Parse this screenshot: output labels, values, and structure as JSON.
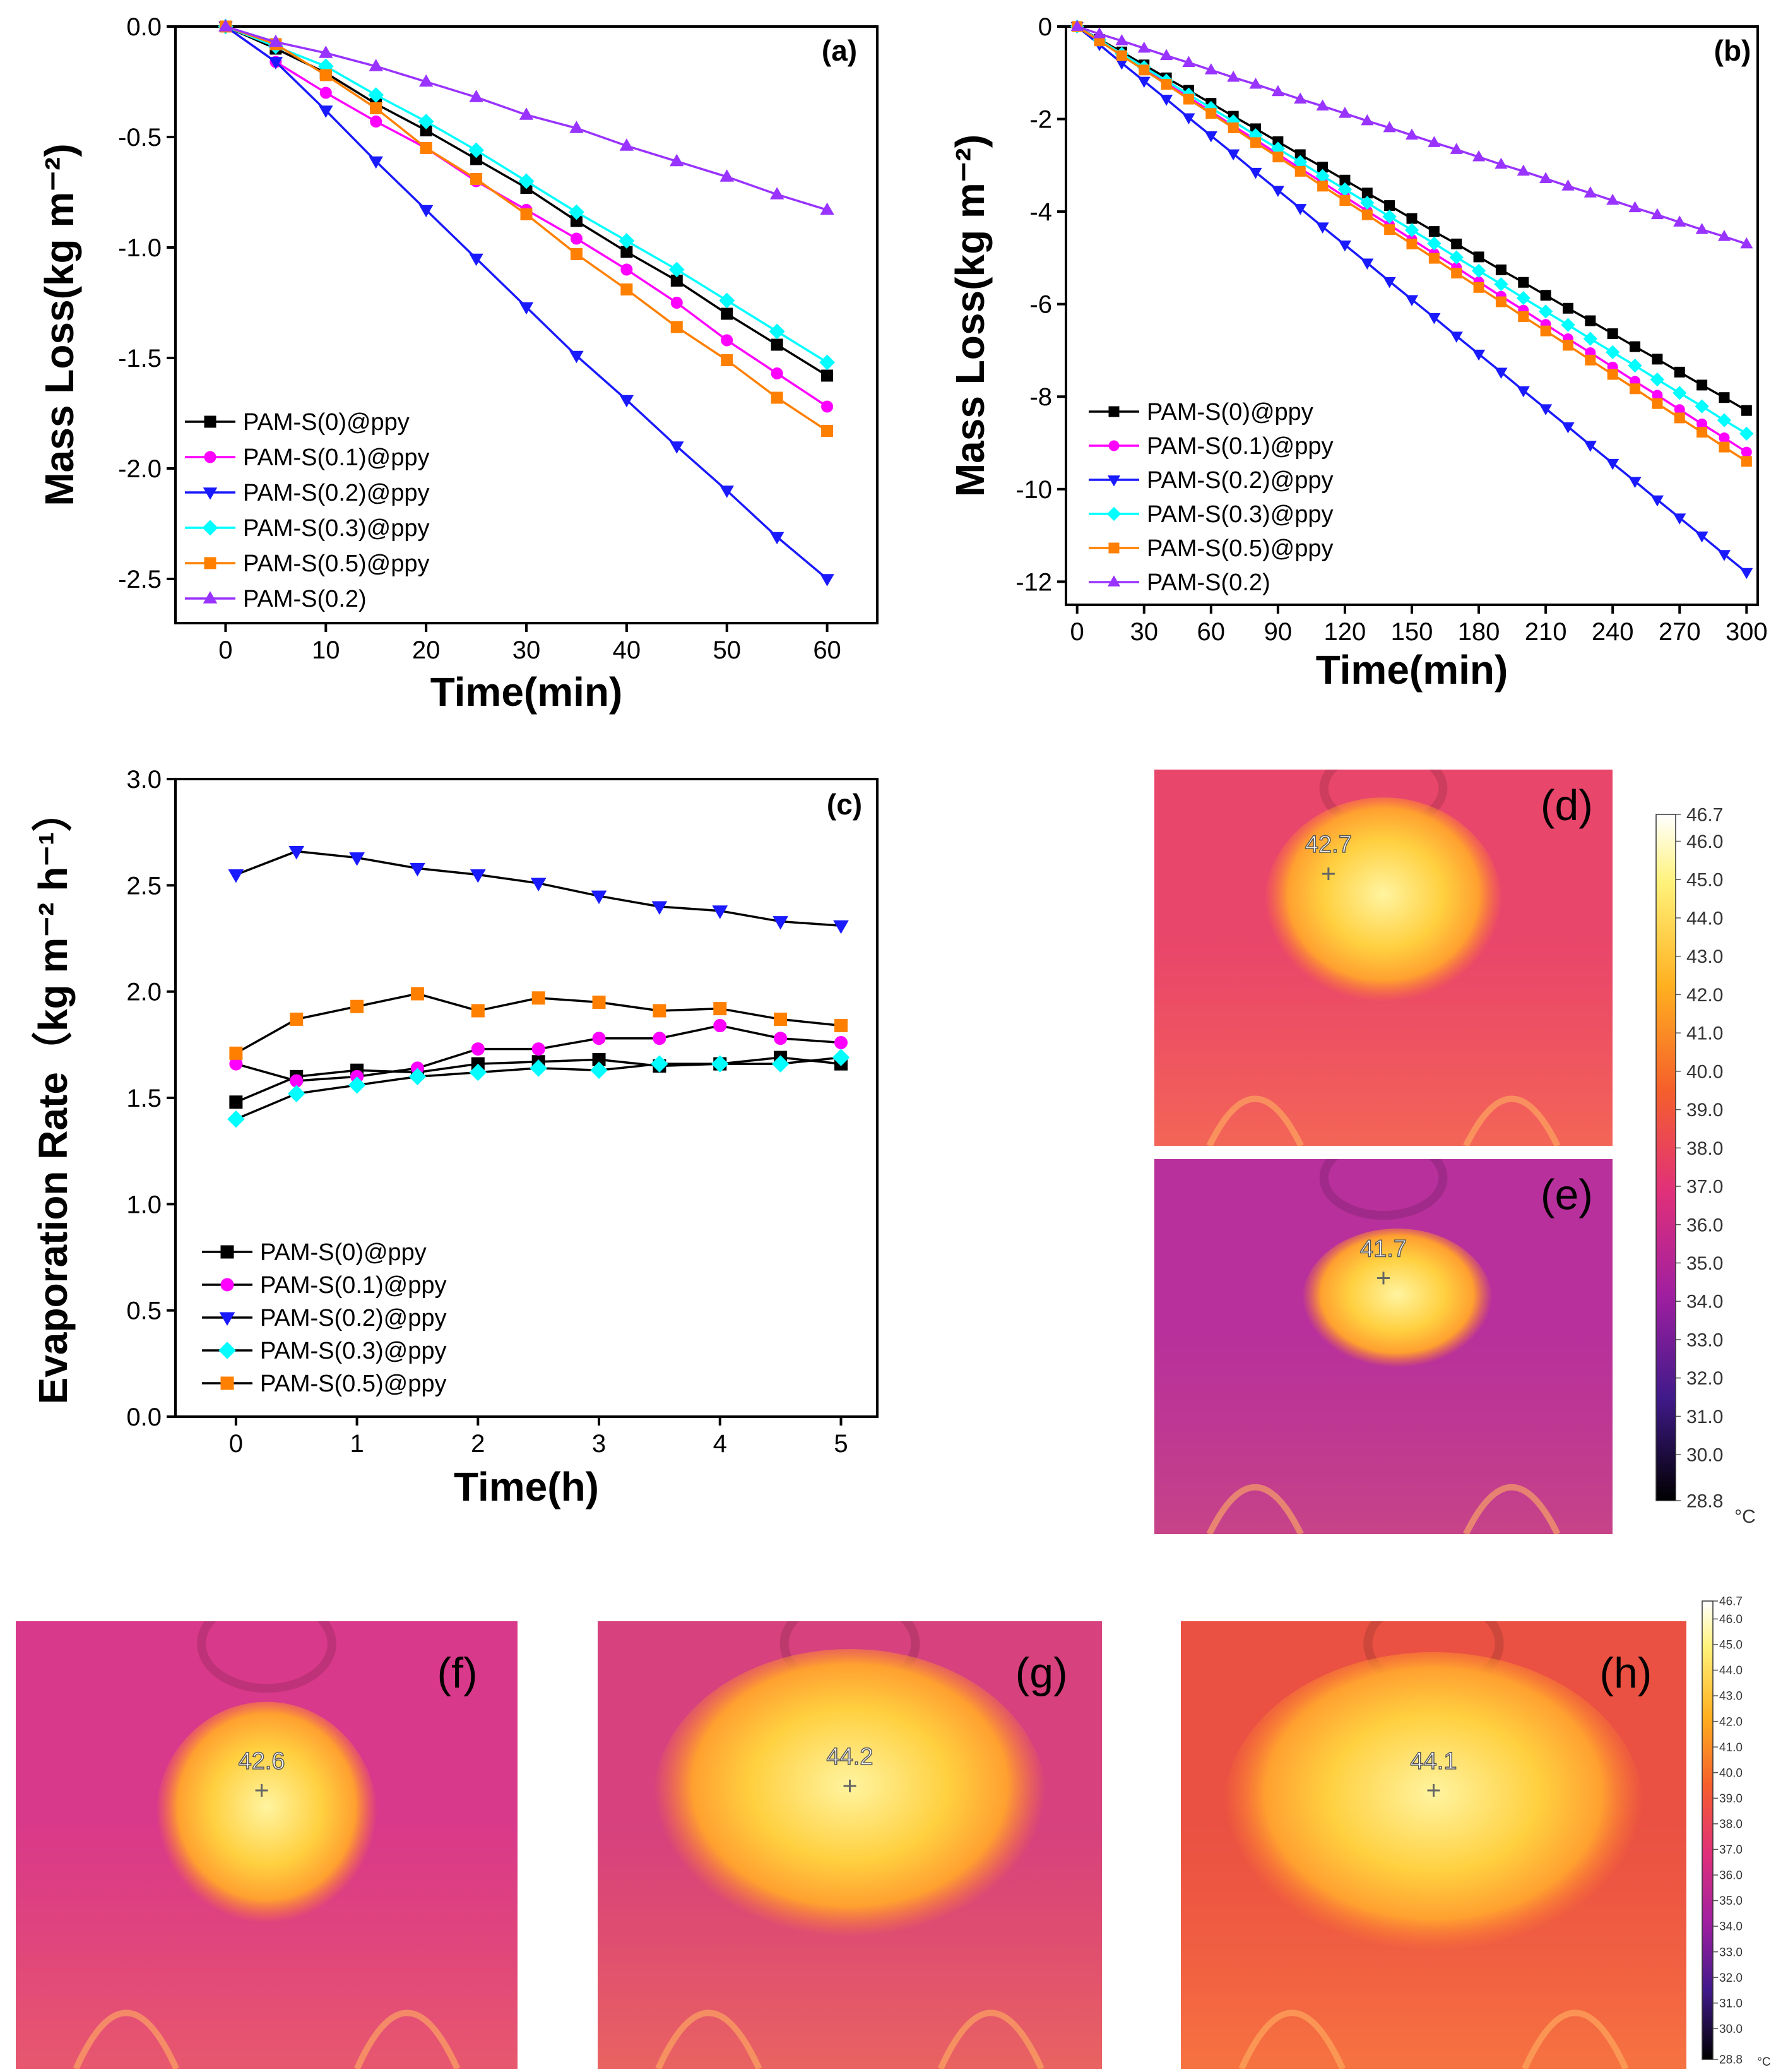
{
  "chart_data": [
    {
      "type": "line",
      "label": "(a)",
      "xlabel": "Time(min)",
      "ylabel": "Mass Loss(kg m⁻²)",
      "x": [
        0,
        5,
        10,
        15,
        20,
        25,
        30,
        35,
        40,
        45,
        50,
        55,
        60
      ],
      "xlim": [
        -5,
        65
      ],
      "xticks": [
        0,
        10,
        20,
        30,
        40,
        50,
        60
      ],
      "ylim": [
        -2.7,
        0.0
      ],
      "yticks": [
        {
          "value": 0,
          "label": "0.0"
        },
        -0.5,
        {
          "value": -1,
          "label": "-1.0"
        },
        -1.5,
        {
          "value": -2,
          "label": "-2.0"
        },
        -2.5
      ],
      "series": [
        {
          "name": "PAM-S(0)@ppy",
          "color": "#000000",
          "marker": "square",
          "values": [
            0,
            -0.1,
            -0.21,
            -0.35,
            -0.47,
            -0.6,
            -0.73,
            -0.88,
            -1.02,
            -1.15,
            -1.3,
            -1.44,
            -1.58
          ]
        },
        {
          "name": "PAM-S(0.1)@ppy",
          "color": "#ff00ff",
          "marker": "circle",
          "values": [
            0,
            -0.16,
            -0.3,
            -0.43,
            -0.55,
            -0.7,
            -0.83,
            -0.96,
            -1.1,
            -1.25,
            -1.42,
            -1.57,
            -1.72
          ]
        },
        {
          "name": "PAM-S(0.2)@ppy",
          "color": "#1a1aff",
          "marker": "triangle-down",
          "values": [
            0,
            -0.16,
            -0.38,
            -0.61,
            -0.83,
            -1.05,
            -1.27,
            -1.49,
            -1.69,
            -1.9,
            -2.1,
            -2.31,
            -2.5
          ]
        },
        {
          "name": "PAM-S(0.3)@ppy",
          "color": "#00ffff",
          "marker": "diamond",
          "values": [
            0,
            -0.09,
            -0.18,
            -0.31,
            -0.43,
            -0.56,
            -0.7,
            -0.84,
            -0.97,
            -1.1,
            -1.24,
            -1.38,
            -1.52
          ]
        },
        {
          "name": "PAM-S(0.5)@ppy",
          "color": "#ff8000",
          "marker": "square",
          "values": [
            0,
            -0.08,
            -0.22,
            -0.37,
            -0.55,
            -0.69,
            -0.85,
            -1.03,
            -1.19,
            -1.36,
            -1.51,
            -1.68,
            -1.83
          ]
        },
        {
          "name": "PAM-S(0.2)",
          "color": "#9933ff",
          "marker": "triangle-up",
          "values": [
            0,
            -0.07,
            -0.12,
            -0.18,
            -0.25,
            -0.32,
            -0.4,
            -0.46,
            -0.54,
            -0.61,
            -0.68,
            -0.76,
            -0.83
          ]
        }
      ]
    },
    {
      "type": "line",
      "label": "(b)",
      "xlabel": "Time(min)",
      "ylabel": "Mass Loss(kg m⁻²)",
      "x": [
        0,
        10,
        20,
        30,
        40,
        50,
        60,
        70,
        80,
        90,
        100,
        110,
        120,
        130,
        140,
        150,
        160,
        170,
        180,
        190,
        200,
        210,
        220,
        230,
        240,
        250,
        260,
        270,
        280,
        290,
        300
      ],
      "xlim": [
        -5,
        305
      ],
      "xticks": [
        0,
        30,
        60,
        90,
        120,
        150,
        180,
        210,
        240,
        270,
        300
      ],
      "ylim": [
        -12.5,
        0
      ],
      "yticks": [
        0,
        -2,
        -4,
        -6,
        -8,
        -10,
        -12
      ],
      "series": [
        {
          "name": "PAM-S(0)@ppy",
          "color": "#000000",
          "marker": "square",
          "values": [
            0,
            -0.28,
            -0.55,
            -0.83,
            -1.11,
            -1.38,
            -1.66,
            -1.94,
            -2.21,
            -2.49,
            -2.77,
            -3.04,
            -3.32,
            -3.6,
            -3.87,
            -4.15,
            -4.43,
            -4.7,
            -4.98,
            -5.26,
            -5.53,
            -5.81,
            -6.09,
            -6.36,
            -6.64,
            -6.92,
            -7.19,
            -7.47,
            -7.75,
            -8.02,
            -8.3
          ]
        },
        {
          "name": "PAM-S(0.1)@ppy",
          "color": "#ff00ff",
          "marker": "circle",
          "values": [
            0,
            -0.31,
            -0.61,
            -0.92,
            -1.23,
            -1.53,
            -1.84,
            -2.15,
            -2.45,
            -2.76,
            -3.07,
            -3.37,
            -3.68,
            -3.99,
            -4.29,
            -4.6,
            -4.91,
            -5.21,
            -5.52,
            -5.83,
            -6.13,
            -6.44,
            -6.75,
            -7.05,
            -7.36,
            -7.67,
            -7.97,
            -8.28,
            -8.59,
            -8.89,
            -9.2
          ]
        },
        {
          "name": "PAM-S(0.2)@ppy",
          "color": "#1a1aff",
          "marker": "triangle-down",
          "values": [
            0,
            -0.39,
            -0.79,
            -1.18,
            -1.57,
            -1.97,
            -2.36,
            -2.75,
            -3.15,
            -3.54,
            -3.93,
            -4.33,
            -4.72,
            -5.11,
            -5.51,
            -5.9,
            -6.29,
            -6.69,
            -7.08,
            -7.47,
            -7.87,
            -8.26,
            -8.65,
            -9.05,
            -9.44,
            -9.83,
            -10.23,
            -10.62,
            -11.01,
            -11.41,
            -11.8
          ]
        },
        {
          "name": "PAM-S(0.3)@ppy",
          "color": "#00ffff",
          "marker": "diamond",
          "values": [
            0,
            -0.29,
            -0.59,
            -0.88,
            -1.17,
            -1.47,
            -1.76,
            -2.05,
            -2.35,
            -2.64,
            -2.93,
            -3.23,
            -3.52,
            -3.81,
            -4.11,
            -4.4,
            -4.69,
            -4.99,
            -5.28,
            -5.57,
            -5.87,
            -6.16,
            -6.45,
            -6.75,
            -7.04,
            -7.33,
            -7.63,
            -7.92,
            -8.21,
            -8.51,
            -8.8
          ]
        },
        {
          "name": "PAM-S(0.5)@ppy",
          "color": "#ff8000",
          "marker": "square",
          "values": [
            0,
            -0.31,
            -0.63,
            -0.94,
            -1.25,
            -1.57,
            -1.88,
            -2.19,
            -2.51,
            -2.82,
            -3.13,
            -3.45,
            -3.76,
            -4.07,
            -4.39,
            -4.7,
            -5.01,
            -5.33,
            -5.64,
            -5.95,
            -6.27,
            -6.58,
            -6.89,
            -7.21,
            -7.52,
            -7.83,
            -8.15,
            -8.46,
            -8.77,
            -9.09,
            -9.4
          ]
        },
        {
          "name": "PAM-S(0.2)",
          "color": "#9933ff",
          "marker": "triangle-up",
          "values": [
            0,
            -0.16,
            -0.31,
            -0.47,
            -0.63,
            -0.78,
            -0.94,
            -1.1,
            -1.25,
            -1.41,
            -1.57,
            -1.72,
            -1.88,
            -2.04,
            -2.19,
            -2.35,
            -2.51,
            -2.66,
            -2.82,
            -2.98,
            -3.13,
            -3.29,
            -3.45,
            -3.6,
            -3.76,
            -3.92,
            -4.07,
            -4.23,
            -4.39,
            -4.54,
            -4.7
          ]
        }
      ]
    },
    {
      "type": "line",
      "label": "(c)",
      "xlabel": "Time(h)",
      "ylabel": "Evaporation  Rate（kg m⁻² h⁻¹）",
      "x": [
        0,
        0.5,
        1,
        1.5,
        2,
        2.5,
        3,
        3.5,
        4,
        4.5,
        5
      ],
      "xlim": [
        -0.5,
        5.3
      ],
      "xticks": [
        0,
        1,
        2,
        3,
        4,
        5
      ],
      "ylim": [
        0,
        3
      ],
      "yticks": [
        {
          "value": 0,
          "label": "0.0"
        },
        0.5,
        {
          "value": 1,
          "label": "1.0"
        },
        1.5,
        {
          "value": 2,
          "label": "2.0"
        },
        2.5,
        {
          "value": 3,
          "label": "3.0"
        }
      ],
      "series": [
        {
          "name": "PAM-S(0)@ppy",
          "color": "#000000",
          "marker": "square",
          "values": [
            1.48,
            1.6,
            1.63,
            1.62,
            1.66,
            1.67,
            1.68,
            1.65,
            1.66,
            1.69,
            1.66
          ]
        },
        {
          "name": "PAM-S(0.1)@ppy",
          "color": "#ff00ff",
          "marker": "circle",
          "values": [
            1.66,
            1.58,
            1.6,
            1.64,
            1.73,
            1.73,
            1.78,
            1.78,
            1.84,
            1.78,
            1.76
          ]
        },
        {
          "name": "PAM-S(0.2)@ppy",
          "color": "#1a1aff",
          "marker": "triangle-down",
          "values": [
            2.55,
            2.66,
            2.63,
            2.58,
            2.55,
            2.51,
            2.45,
            2.4,
            2.38,
            2.33,
            2.31
          ]
        },
        {
          "name": "PAM-S(0.3)@ppy",
          "color": "#00ffff",
          "marker": "diamond",
          "values": [
            1.4,
            1.52,
            1.56,
            1.6,
            1.62,
            1.64,
            1.63,
            1.66,
            1.66,
            1.66,
            1.69
          ]
        },
        {
          "name": "PAM-S(0.5)@ppy",
          "color": "#ff8000",
          "marker": "square",
          "values": [
            1.71,
            1.87,
            1.93,
            1.99,
            1.91,
            1.97,
            1.95,
            1.91,
            1.92,
            1.87,
            1.84
          ]
        }
      ],
      "line_color": "#000000"
    }
  ],
  "thermal": {
    "panels": [
      {
        "label": "(d)",
        "temperature": "42.7"
      },
      {
        "label": "(e)",
        "temperature": "41.7"
      },
      {
        "label": "(f)",
        "temperature": "42.6"
      },
      {
        "label": "(g)",
        "temperature": "44.2"
      },
      {
        "label": "(h)",
        "temperature": "44.1"
      }
    ],
    "colorbar_ticks": [
      "46.7",
      "46.0",
      "45.0",
      "44.0",
      "43.0",
      "42.0",
      "41.0",
      "40.0",
      "39.0",
      "38.0",
      "37.0",
      "36.0",
      "35.0",
      "34.0",
      "33.0",
      "32.0",
      "31.0",
      "30.0",
      "28.8"
    ],
    "unit": "°C"
  }
}
